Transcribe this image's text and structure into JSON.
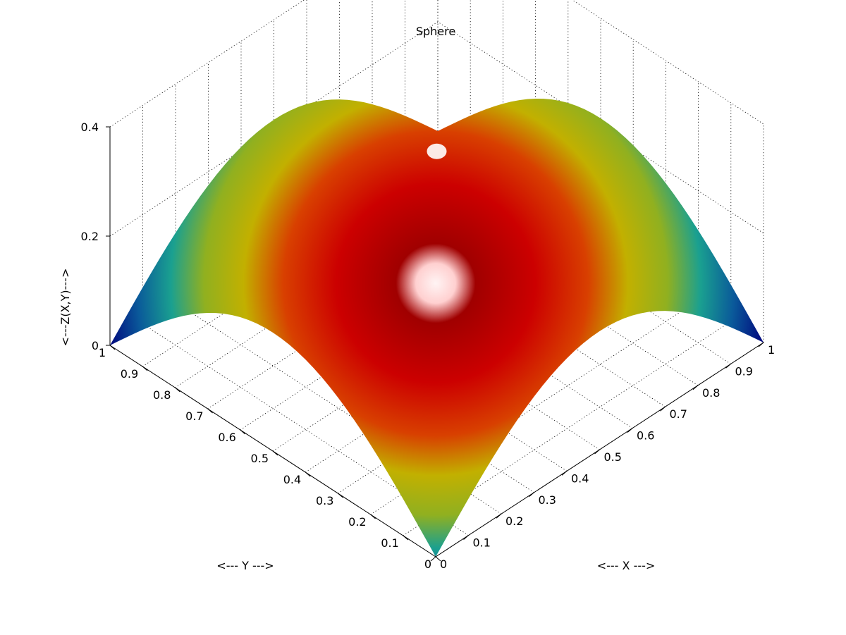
{
  "chart_data": {
    "type": "surface",
    "title": "Sphere",
    "xlabel": "<--- X --->",
    "ylabel": "<--- Y --->",
    "zlabel": "<---Z(X,Y)--->",
    "xlim": [
      0,
      1
    ],
    "ylim": [
      0,
      1
    ],
    "zlim": [
      0,
      0.4
    ],
    "x_ticks": [
      "0",
      "0.1",
      "0.2",
      "0.3",
      "0.4",
      "0.5",
      "0.6",
      "0.7",
      "0.8",
      "0.9",
      "1"
    ],
    "y_ticks": [
      "0",
      "0.1",
      "0.2",
      "0.3",
      "0.4",
      "0.5",
      "0.6",
      "0.7",
      "0.8",
      "0.9",
      "1"
    ],
    "z_ticks": [
      "0",
      "0.2",
      "0.4"
    ],
    "grid": true,
    "colormap": "jet",
    "shading": "interp with lighting",
    "surface_peak": {
      "x": 0.5,
      "y": 0.5,
      "z": 0.35
    },
    "surface_corners_z": 0.0,
    "colors": {
      "low": "#00008c",
      "mid": "#c8b400",
      "high": "#d00000",
      "highlight": "#ffffff"
    }
  }
}
